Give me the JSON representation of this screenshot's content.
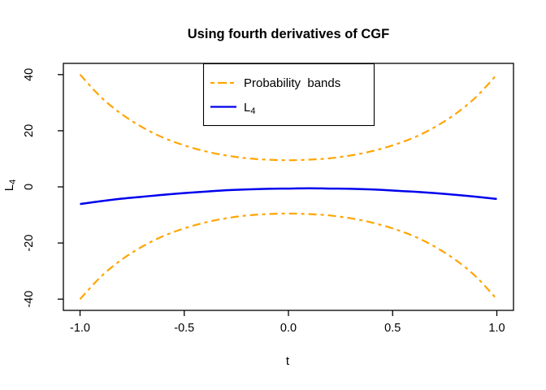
{
  "page": {
    "background": "#ffffff"
  },
  "chart_data": {
    "type": "line",
    "title": "Using fourth derivatives of CGF",
    "xlabel": "t",
    "ylabel": {
      "text": "L",
      "sub": "4"
    },
    "grid": false,
    "xlim": [
      -1.08,
      1.08
    ],
    "ylim": [
      -44,
      44
    ],
    "xticks": {
      "values": [
        -1.0,
        -0.5,
        0.0,
        0.5,
        1.0
      ],
      "labels": [
        "-1.0",
        "-0.5",
        "0.0",
        "0.5",
        "1.0"
      ]
    },
    "yticks": {
      "values": [
        -40,
        -20,
        0,
        20,
        40
      ],
      "labels": [
        "-40",
        "-20",
        "0",
        "20",
        "40"
      ]
    },
    "colors": {
      "band": "#FFA500",
      "l4": "#0000EE",
      "axis": "#000000"
    },
    "legend": {
      "position": "top-center",
      "entries": [
        {
          "label": "Probability  bands",
          "color": "#FFA500",
          "style": "twodash"
        },
        {
          "label": "L",
          "label_sub": "4",
          "color": "#0000EE",
          "style": "solid"
        }
      ]
    },
    "x": [
      -1.0,
      -0.9,
      -0.8,
      -0.7,
      -0.6,
      -0.5,
      -0.4,
      -0.3,
      -0.2,
      -0.1,
      0.0,
      0.1,
      0.2,
      0.3,
      0.4,
      0.5,
      0.6,
      0.7,
      0.8,
      0.9,
      1.0
    ],
    "series": [
      {
        "name": "upper probability band",
        "color": "#FFA500",
        "style": "twodash",
        "width": 2.2,
        "y": [
          40.0,
          32.0,
          25.9,
          21.2,
          17.5,
          14.8,
          12.7,
          11.2,
          10.2,
          9.7,
          9.5,
          9.7,
          10.2,
          11.2,
          12.7,
          14.8,
          17.5,
          21.2,
          25.9,
          32.0,
          40.0
        ]
      },
      {
        "name": "lower probability band",
        "color": "#FFA500",
        "style": "twodash",
        "width": 2.2,
        "y": [
          -40.0,
          -32.0,
          -25.9,
          -21.2,
          -17.5,
          -14.8,
          -12.7,
          -11.2,
          -10.2,
          -9.7,
          -9.5,
          -9.7,
          -10.2,
          -11.2,
          -12.7,
          -14.8,
          -17.5,
          -21.2,
          -25.9,
          -32.0,
          -40.0
        ]
      },
      {
        "name": "L4",
        "color": "#0000EE",
        "style": "solid",
        "width": 2.5,
        "y": [
          -6.1,
          -5.1,
          -4.2,
          -3.5,
          -2.8,
          -2.2,
          -1.7,
          -1.2,
          -0.9,
          -0.7,
          -0.6,
          -0.5,
          -0.6,
          -0.7,
          -0.9,
          -1.3,
          -1.7,
          -2.2,
          -2.8,
          -3.5,
          -4.3
        ]
      }
    ]
  }
}
